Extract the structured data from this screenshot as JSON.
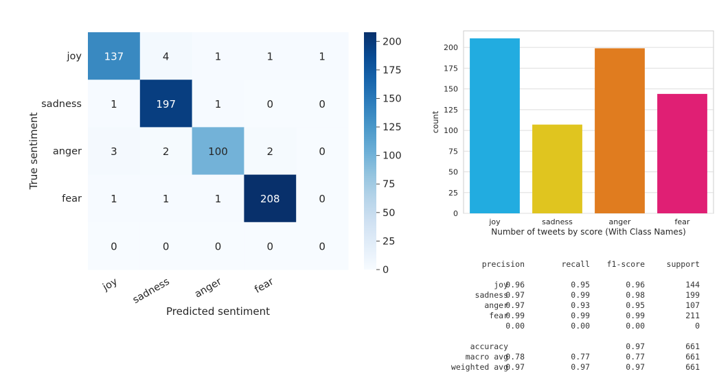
{
  "chart_data": [
    {
      "type": "heatmap",
      "xlabel": "Predicted sentiment",
      "ylabel": "True sentiment",
      "x_tick_labels": [
        "joy",
        "sadness",
        "anger",
        "fear",
        ""
      ],
      "y_tick_labels": [
        "joy",
        "sadness",
        "anger",
        "fear",
        ""
      ],
      "matrix": [
        [
          137,
          4,
          1,
          1,
          1
        ],
        [
          1,
          197,
          1,
          0,
          0
        ],
        [
          3,
          2,
          100,
          2,
          0
        ],
        [
          1,
          1,
          1,
          208,
          0
        ],
        [
          0,
          0,
          0,
          0,
          0
        ]
      ],
      "colorbar": {
        "range": [
          0,
          208
        ],
        "ticks": [
          0,
          25,
          50,
          75,
          100,
          125,
          150,
          175,
          200
        ],
        "colormap": "Blues"
      }
    },
    {
      "type": "bar",
      "categories": [
        "joy",
        "sadness",
        "anger",
        "fear"
      ],
      "values": [
        211,
        107,
        199,
        144
      ],
      "colors": [
        "#22ace0",
        "#e0c51f",
        "#e07c1f",
        "#e01f74"
      ],
      "xlabel": "Number of tweets by score (With Class Names)",
      "ylabel": "count",
      "ylim": [
        0,
        220
      ],
      "yticks": [
        0,
        25,
        50,
        75,
        100,
        125,
        150,
        175,
        200
      ],
      "grid": true
    },
    {
      "type": "table",
      "columns": [
        "precision",
        "recall",
        "f1-score",
        "support"
      ],
      "rows": [
        {
          "label": "joy",
          "values": [
            "0.96",
            "0.95",
            "0.96",
            "144"
          ]
        },
        {
          "label": "sadness",
          "values": [
            "0.97",
            "0.99",
            "0.98",
            "199"
          ]
        },
        {
          "label": "anger",
          "values": [
            "0.97",
            "0.93",
            "0.95",
            "107"
          ]
        },
        {
          "label": "fear",
          "values": [
            "0.99",
            "0.99",
            "0.99",
            "211"
          ]
        },
        {
          "label": "",
          "values": [
            "0.00",
            "0.00",
            "0.00",
            "0"
          ]
        }
      ],
      "summary": [
        {
          "label": "accuracy",
          "values": [
            "",
            "",
            "0.97",
            "661"
          ]
        },
        {
          "label": "macro avg",
          "values": [
            "0.78",
            "0.77",
            "0.77",
            "661"
          ]
        },
        {
          "label": "weighted avg",
          "values": [
            "0.97",
            "0.97",
            "0.97",
            "661"
          ]
        }
      ]
    }
  ]
}
